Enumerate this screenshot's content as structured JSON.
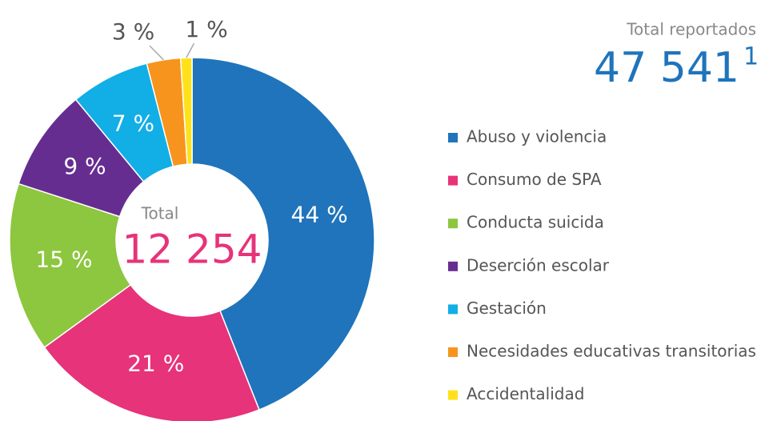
{
  "chart_data": {
    "type": "donut",
    "center_label": "Total",
    "center_value": "12 254",
    "total_label": "Total reportados",
    "total_value": "47 541",
    "total_note": "1",
    "categories": [
      "Abuso y violencia",
      "Consumo de SPA",
      "Conducta suicida",
      "Deserción escolar",
      "Gestación",
      "Necesidades educativas transitorias",
      "Accidentalidad"
    ],
    "values": [
      44,
      21,
      15,
      9,
      7,
      3,
      1
    ],
    "value_labels": [
      "44 %",
      "21 %",
      "15 %",
      "9 %",
      "7 %",
      "3 %",
      "1 %"
    ],
    "colors": [
      "#1f74bb",
      "#e6337a",
      "#8dc63f",
      "#662d91",
      "#12aee6",
      "#f7941d",
      "#ffe11a"
    ],
    "legend": "right"
  }
}
